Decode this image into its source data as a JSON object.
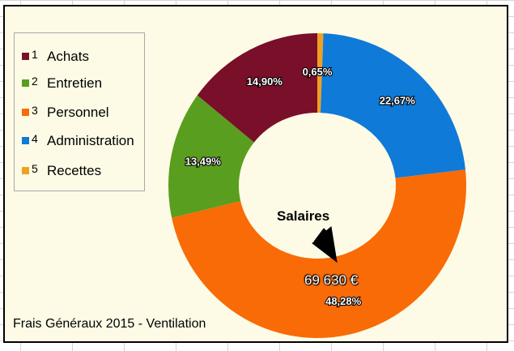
{
  "chart_data": {
    "type": "pie",
    "subtype": "donut",
    "title": "Frais Généraux 2015 - Ventilation",
    "categories": [
      "Achats",
      "Entretien",
      "Personnel",
      "Administration",
      "Recettes"
    ],
    "legend_numbers": [
      "1",
      "2",
      "3",
      "4",
      "5"
    ],
    "values": [
      14.9,
      13.49,
      48.28,
      22.67,
      0.65
    ],
    "value_labels": [
      "14,90%",
      "13,49%",
      "48,28%",
      "22,67%",
      "0,65%"
    ],
    "colors": [
      "#7a0f2a",
      "#5a9e1f",
      "#f96b06",
      "#0f7ad8",
      "#f0a020"
    ],
    "legend_position": "left",
    "annotation": {
      "label": "Salaires",
      "value": "69 630 €",
      "target": "Personnel"
    }
  }
}
